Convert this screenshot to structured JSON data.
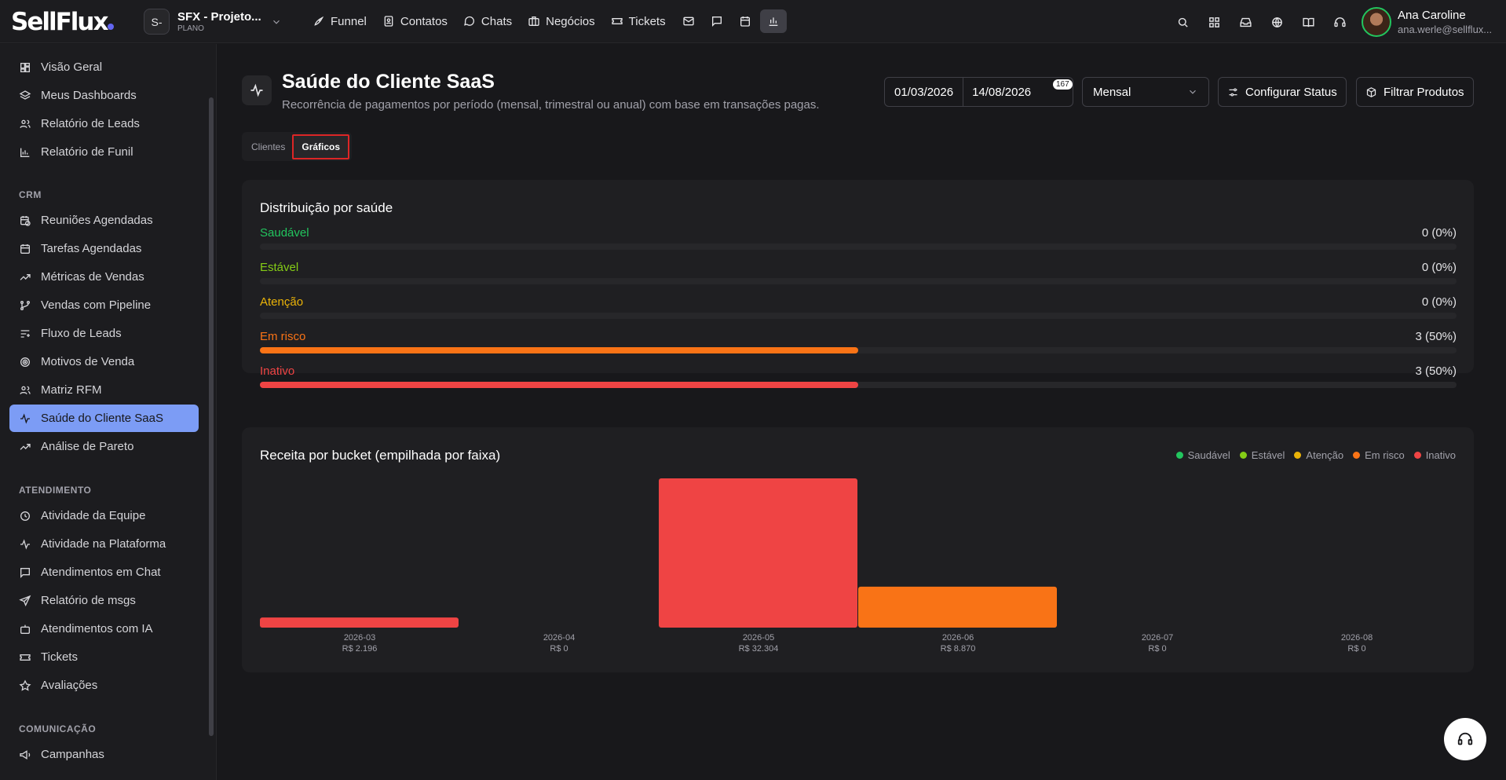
{
  "topbar": {
    "project_initial": "S-",
    "project_name": "SFX - Projeto...",
    "project_plan": "PLANO",
    "nav": [
      "Funnel",
      "Contatos",
      "Chats",
      "Negócios",
      "Tickets"
    ],
    "user_name": "Ana Caroline",
    "user_email": "ana.werle@sellflux..."
  },
  "sidebar": {
    "items_top": [
      "Visão Geral",
      "Meus Dashboards",
      "Relatório de Leads",
      "Relatório de Funil"
    ],
    "crm_title": "CRM",
    "crm_items": [
      "Reuniões Agendadas",
      "Tarefas Agendadas",
      "Métricas de Vendas",
      "Vendas com Pipeline",
      "Fluxo de Leads",
      "Motivos de Venda",
      "Matriz RFM",
      "Saúde do Cliente SaaS",
      "Análise de Pareto"
    ],
    "atendimento_title": "ATENDIMENTO",
    "atendimento_items": [
      "Atividade da Equipe",
      "Atividade na Plataforma",
      "Atendimentos em Chat",
      "Relatório de msgs",
      "Atendimentos com IA",
      "Tickets",
      "Avaliações"
    ],
    "comunicacao_title": "COMUNICAÇÃO",
    "comunicacao_items": [
      "Campanhas"
    ]
  },
  "page": {
    "title": "Saúde do Cliente SaaS",
    "subtitle": "Recorrência de pagamentos por período (mensal, trimestral ou anual) com base em transações pagas.",
    "date_start": "01/03/2026",
    "date_end": "14/08/2026",
    "date_badge": "167",
    "period": "Mensal",
    "btn_status": "Configurar Status",
    "btn_filter": "Filtrar Produtos",
    "tab_clients": "Clientes",
    "tab_charts": "Gráficos"
  },
  "health": {
    "title": "Distribuição por saúde",
    "rows": [
      {
        "label": "Saudável",
        "value": "0 (0%)",
        "fraction": 0,
        "color": "#22c55e"
      },
      {
        "label": "Estável",
        "value": "0 (0%)",
        "fraction": 0,
        "color": "#84cc16"
      },
      {
        "label": "Atenção",
        "value": "0 (0%)",
        "fraction": 0,
        "color": "#eab308"
      },
      {
        "label": "Em risco",
        "value": "3 (50%)",
        "fraction": 0.5,
        "color": "#f97316"
      },
      {
        "label": "Inativo",
        "value": "3 (50%)",
        "fraction": 0.5,
        "color": "#ef4444"
      }
    ]
  },
  "chart_data": {
    "type": "bar",
    "title": "Receita por bucket (empilhada por faixa)",
    "categories": [
      "2026-03",
      "2026-04",
      "2026-05",
      "2026-06",
      "2026-07",
      "2026-08"
    ],
    "category_totals": [
      "R$ 2.196",
      "R$ 0",
      "R$ 32.304",
      "R$ 8.870",
      "R$ 0",
      "R$ 0"
    ],
    "series": [
      {
        "name": "Saudável",
        "color": "#22c55e",
        "values": [
          0,
          0,
          0,
          0,
          0,
          0
        ]
      },
      {
        "name": "Estável",
        "color": "#84cc16",
        "values": [
          0,
          0,
          0,
          0,
          0,
          0
        ]
      },
      {
        "name": "Atenção",
        "color": "#eab308",
        "values": [
          0,
          0,
          0,
          0,
          0,
          0
        ]
      },
      {
        "name": "Em risco",
        "color": "#f97316",
        "values": [
          0,
          0,
          0,
          8870,
          0,
          0
        ]
      },
      {
        "name": "Inativo",
        "color": "#ef4444",
        "values": [
          2196,
          0,
          32304,
          0,
          0,
          0
        ]
      }
    ],
    "ylim": [
      0,
      32304
    ],
    "legend": "top-right",
    "grid": false
  }
}
